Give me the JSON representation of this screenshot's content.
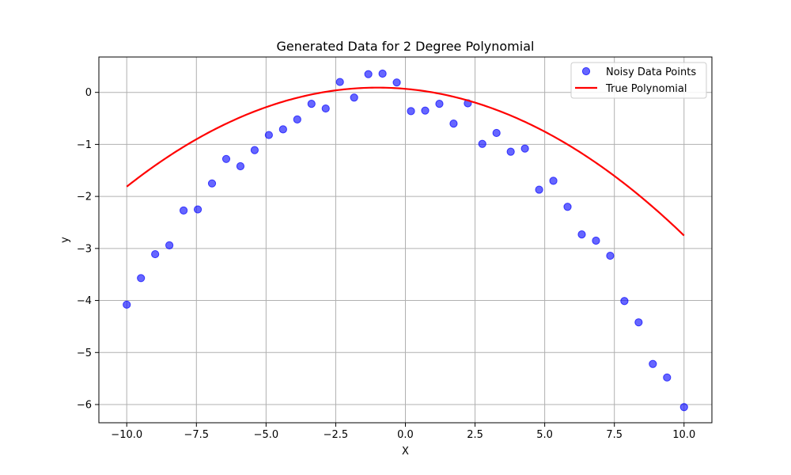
{
  "chart_data": {
    "type": "scatter",
    "title": "Generated Data for 2 Degree Polynomial",
    "xlabel": "X",
    "ylabel": "y",
    "xlim": [
      -11,
      11
    ],
    "ylim": [
      -6.35,
      0.68
    ],
    "xticks": [
      -10.0,
      -7.5,
      -5.0,
      -2.5,
      0.0,
      2.5,
      5.0,
      7.5,
      10.0
    ],
    "xtick_labels": [
      "−10.0",
      "−7.5",
      "−5.0",
      "−2.5",
      "0.0",
      "2.5",
      "5.0",
      "7.5",
      "10.0"
    ],
    "yticks": [
      0,
      -1,
      -2,
      -3,
      -4,
      -5,
      -6
    ],
    "ytick_labels": [
      "0",
      "−1",
      "−2",
      "−3",
      "−4",
      "−5",
      "−6"
    ],
    "grid": true,
    "legend_position": "top-right",
    "series": [
      {
        "name": "Noisy Data Points",
        "kind": "scatter",
        "color": "#0000ff",
        "x": [
          -10.0,
          -9.49,
          -8.98,
          -8.47,
          -7.96,
          -7.45,
          -6.94,
          -6.43,
          -5.92,
          -5.41,
          -4.9,
          -4.39,
          -3.88,
          -3.37,
          -2.86,
          -2.35,
          -1.84,
          -1.33,
          -0.82,
          -0.31,
          0.2,
          0.71,
          1.22,
          1.73,
          2.24,
          2.76,
          3.27,
          3.78,
          4.29,
          4.8,
          5.31,
          5.82,
          6.33,
          6.84,
          7.35,
          7.86,
          8.37,
          8.88,
          9.39,
          10.0
        ],
        "y": [
          -4.08,
          -3.57,
          -3.11,
          -2.94,
          -2.27,
          -2.25,
          -1.75,
          -1.28,
          -1.42,
          -1.11,
          -0.82,
          -0.71,
          -0.52,
          -0.22,
          -0.31,
          0.2,
          -0.1,
          0.35,
          0.36,
          0.19,
          -0.36,
          -0.35,
          -0.22,
          -0.6,
          -0.21,
          -0.99,
          -0.78,
          -1.14,
          -1.08,
          -1.87,
          -1.7,
          -2.2,
          -2.73,
          -2.85,
          -3.14,
          -4.01,
          -4.42,
          -5.22,
          -5.48,
          -6.05
        ]
      },
      {
        "name": "True Polynomial",
        "kind": "line",
        "color": "#ff0000",
        "coefficients": [
          0.068,
          -0.047,
          -0.0235
        ]
      }
    ]
  }
}
